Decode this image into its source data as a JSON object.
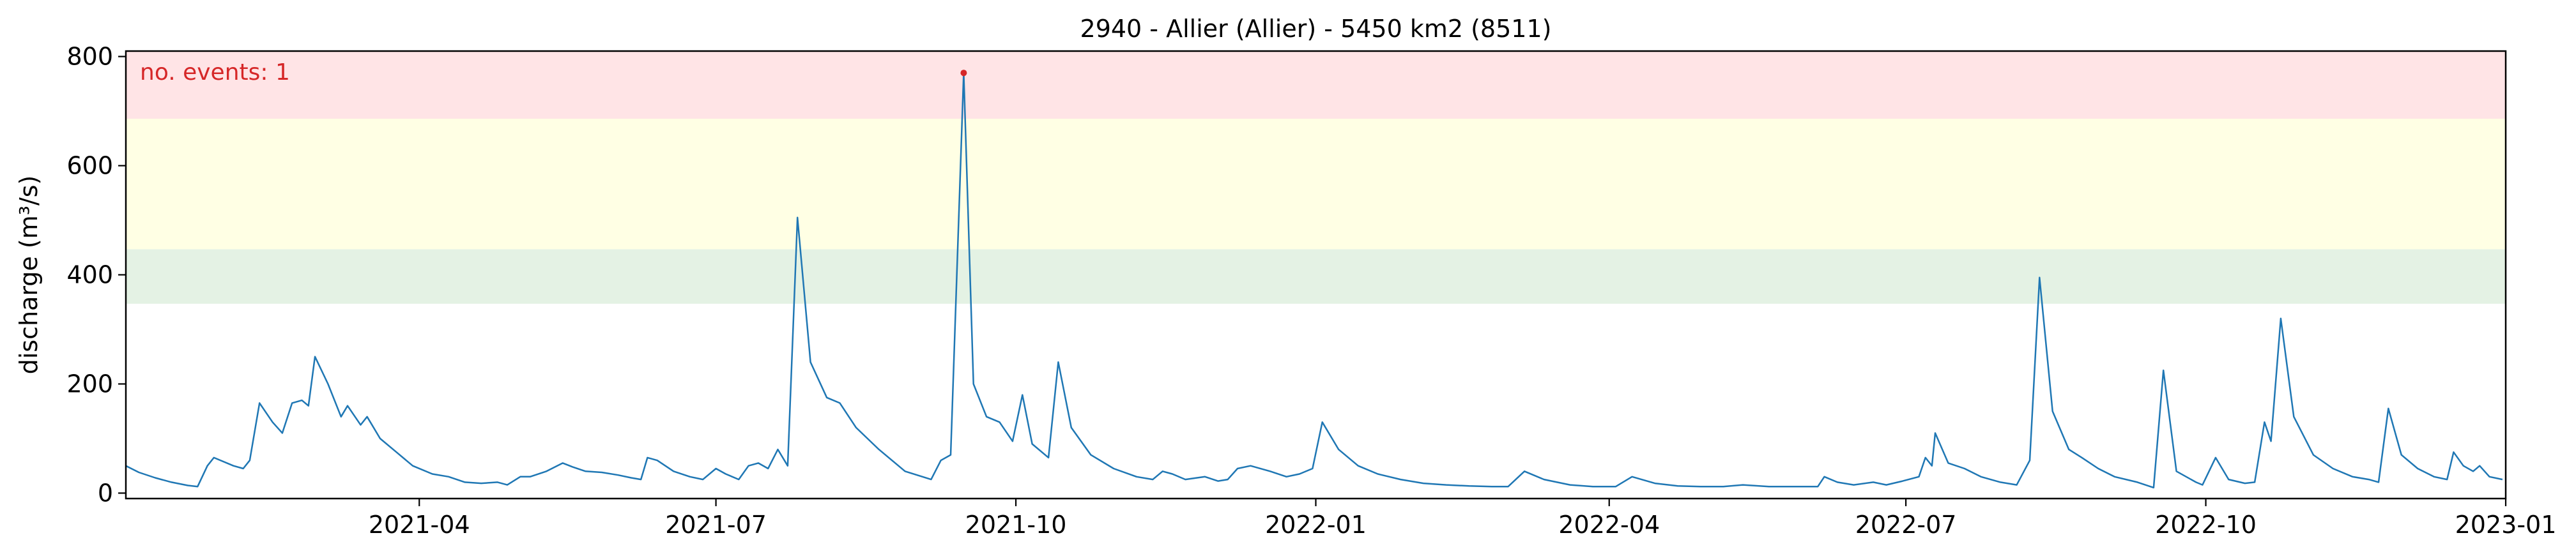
{
  "chart_data": {
    "type": "line",
    "title": "2940 - Allier (Allier) - 5450 km2 (8511)",
    "xlabel": "",
    "ylabel": "discharge (m³/s)",
    "xlim": [
      "2021-01-01",
      "2023-01-01"
    ],
    "ylim": [
      -10,
      810
    ],
    "x_ticks": [
      "2021-04",
      "2021-07",
      "2021-10",
      "2022-01",
      "2022-04",
      "2022-07",
      "2022-10",
      "2023-01"
    ],
    "y_ticks": [
      0,
      200,
      400,
      600,
      800
    ],
    "grid": false,
    "legend": "none",
    "colors": {
      "line": "#1f77b4",
      "event_marker": "#d62728",
      "annotation": "#d62728",
      "band_green": "#e4f2e4",
      "band_yellow": "#ffffe4",
      "band_red": "#ffe4e6"
    },
    "threshold_bands": [
      {
        "from": 347,
        "to": 447,
        "color": "band_green"
      },
      {
        "from": 447,
        "to": 686,
        "color": "band_yellow"
      },
      {
        "from": 686,
        "to": 810,
        "color": "band_red"
      }
    ],
    "annotation": "no. events: 1",
    "events": [
      {
        "date": "2021-09-15",
        "value": 770
      }
    ],
    "series": [
      {
        "points": [
          [
            "2021-01-01",
            50
          ],
          [
            "2021-01-05",
            38
          ],
          [
            "2021-01-10",
            28
          ],
          [
            "2021-01-15",
            20
          ],
          [
            "2021-01-20",
            14
          ],
          [
            "2021-01-23",
            12
          ],
          [
            "2021-01-26",
            50
          ],
          [
            "2021-01-28",
            65
          ],
          [
            "2021-02-03",
            50
          ],
          [
            "2021-02-06",
            45
          ],
          [
            "2021-02-08",
            60
          ],
          [
            "2021-02-11",
            165
          ],
          [
            "2021-02-15",
            130
          ],
          [
            "2021-02-18",
            110
          ],
          [
            "2021-02-21",
            165
          ],
          [
            "2021-02-24",
            170
          ],
          [
            "2021-02-26",
            160
          ],
          [
            "2021-02-28",
            250
          ],
          [
            "2021-03-04",
            200
          ],
          [
            "2021-03-08",
            140
          ],
          [
            "2021-03-10",
            160
          ],
          [
            "2021-03-14",
            125
          ],
          [
            "2021-03-16",
            140
          ],
          [
            "2021-03-20",
            100
          ],
          [
            "2021-03-25",
            75
          ],
          [
            "2021-03-30",
            50
          ],
          [
            "2021-04-05",
            35
          ],
          [
            "2021-04-10",
            30
          ],
          [
            "2021-04-15",
            20
          ],
          [
            "2021-04-20",
            18
          ],
          [
            "2021-04-25",
            20
          ],
          [
            "2021-04-28",
            15
          ],
          [
            "2021-05-02",
            30
          ],
          [
            "2021-05-05",
            30
          ],
          [
            "2021-05-10",
            40
          ],
          [
            "2021-05-15",
            55
          ],
          [
            "2021-05-18",
            48
          ],
          [
            "2021-05-22",
            40
          ],
          [
            "2021-05-27",
            38
          ],
          [
            "2021-06-01",
            33
          ],
          [
            "2021-06-05",
            28
          ],
          [
            "2021-06-08",
            25
          ],
          [
            "2021-06-10",
            65
          ],
          [
            "2021-06-13",
            60
          ],
          [
            "2021-06-18",
            40
          ],
          [
            "2021-06-23",
            30
          ],
          [
            "2021-06-27",
            25
          ],
          [
            "2021-07-01",
            45
          ],
          [
            "2021-07-04",
            35
          ],
          [
            "2021-07-08",
            25
          ],
          [
            "2021-07-11",
            50
          ],
          [
            "2021-07-14",
            55
          ],
          [
            "2021-07-17",
            45
          ],
          [
            "2021-07-20",
            80
          ],
          [
            "2021-07-23",
            50
          ],
          [
            "2021-07-26",
            505
          ],
          [
            "2021-07-30",
            240
          ],
          [
            "2021-08-04",
            175
          ],
          [
            "2021-08-08",
            165
          ],
          [
            "2021-08-13",
            120
          ],
          [
            "2021-08-20",
            80
          ],
          [
            "2021-08-28",
            40
          ],
          [
            "2021-09-05",
            25
          ],
          [
            "2021-09-08",
            60
          ],
          [
            "2021-09-11",
            70
          ],
          [
            "2021-09-15",
            770
          ],
          [
            "2021-09-18",
            200
          ],
          [
            "2021-09-22",
            140
          ],
          [
            "2021-09-26",
            130
          ],
          [
            "2021-09-30",
            95
          ],
          [
            "2021-10-03",
            180
          ],
          [
            "2021-10-06",
            90
          ],
          [
            "2021-10-11",
            65
          ],
          [
            "2021-10-14",
            240
          ],
          [
            "2021-10-18",
            120
          ],
          [
            "2021-10-24",
            70
          ],
          [
            "2021-10-31",
            45
          ],
          [
            "2021-11-07",
            30
          ],
          [
            "2021-11-12",
            25
          ],
          [
            "2021-11-15",
            40
          ],
          [
            "2021-11-18",
            35
          ],
          [
            "2021-11-22",
            25
          ],
          [
            "2021-11-28",
            30
          ],
          [
            "2021-12-02",
            22
          ],
          [
            "2021-12-05",
            25
          ],
          [
            "2021-12-08",
            45
          ],
          [
            "2021-12-12",
            50
          ],
          [
            "2021-12-18",
            40
          ],
          [
            "2021-12-23",
            30
          ],
          [
            "2021-12-27",
            35
          ],
          [
            "2021-12-31",
            45
          ],
          [
            "2022-01-03",
            130
          ],
          [
            "2022-01-08",
            80
          ],
          [
            "2022-01-14",
            50
          ],
          [
            "2022-01-20",
            35
          ],
          [
            "2022-01-27",
            25
          ],
          [
            "2022-02-03",
            18
          ],
          [
            "2022-02-10",
            15
          ],
          [
            "2022-02-17",
            13
          ],
          [
            "2022-02-24",
            12
          ],
          [
            "2022-03-01",
            12
          ],
          [
            "2022-03-06",
            40
          ],
          [
            "2022-03-12",
            25
          ],
          [
            "2022-03-20",
            15
          ],
          [
            "2022-03-27",
            12
          ],
          [
            "2022-04-03",
            12
          ],
          [
            "2022-04-08",
            30
          ],
          [
            "2022-04-15",
            18
          ],
          [
            "2022-04-22",
            13
          ],
          [
            "2022-04-29",
            12
          ],
          [
            "2022-05-06",
            12
          ],
          [
            "2022-05-12",
            15
          ],
          [
            "2022-05-20",
            12
          ],
          [
            "2022-05-29",
            12
          ],
          [
            "2022-06-04",
            12
          ],
          [
            "2022-06-06",
            30
          ],
          [
            "2022-06-10",
            20
          ],
          [
            "2022-06-15",
            15
          ],
          [
            "2022-06-21",
            20
          ],
          [
            "2022-06-25",
            15
          ],
          [
            "2022-06-30",
            22
          ],
          [
            "2022-07-05",
            30
          ],
          [
            "2022-07-07",
            65
          ],
          [
            "2022-07-09",
            50
          ],
          [
            "2022-07-10",
            110
          ],
          [
            "2022-07-14",
            55
          ],
          [
            "2022-07-19",
            45
          ],
          [
            "2022-07-24",
            30
          ],
          [
            "2022-07-30",
            20
          ],
          [
            "2022-08-04",
            15
          ],
          [
            "2022-08-08",
            60
          ],
          [
            "2022-08-11",
            395
          ],
          [
            "2022-08-15",
            150
          ],
          [
            "2022-08-20",
            80
          ],
          [
            "2022-08-24",
            65
          ],
          [
            "2022-08-29",
            45
          ],
          [
            "2022-09-03",
            30
          ],
          [
            "2022-09-10",
            20
          ],
          [
            "2022-09-15",
            10
          ],
          [
            "2022-09-18",
            225
          ],
          [
            "2022-09-22",
            40
          ],
          [
            "2022-09-28",
            20
          ],
          [
            "2022-09-30",
            15
          ],
          [
            "2022-10-04",
            65
          ],
          [
            "2022-10-08",
            25
          ],
          [
            "2022-10-13",
            18
          ],
          [
            "2022-10-16",
            20
          ],
          [
            "2022-10-19",
            130
          ],
          [
            "2022-10-21",
            95
          ],
          [
            "2022-10-24",
            320
          ],
          [
            "2022-10-28",
            140
          ],
          [
            "2022-11-03",
            70
          ],
          [
            "2022-11-09",
            45
          ],
          [
            "2022-11-15",
            30
          ],
          [
            "2022-11-20",
            25
          ],
          [
            "2022-11-23",
            20
          ],
          [
            "2022-11-26",
            155
          ],
          [
            "2022-11-30",
            70
          ],
          [
            "2022-12-05",
            45
          ],
          [
            "2022-12-10",
            30
          ],
          [
            "2022-12-14",
            25
          ],
          [
            "2022-12-16",
            75
          ],
          [
            "2022-12-19",
            50
          ],
          [
            "2022-12-22",
            40
          ],
          [
            "2022-12-24",
            50
          ],
          [
            "2022-12-27",
            30
          ],
          [
            "2022-12-31",
            25
          ]
        ]
      }
    ]
  }
}
